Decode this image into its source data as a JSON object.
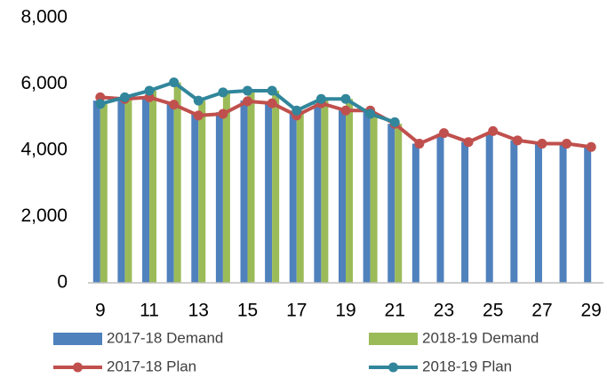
{
  "chart_data": {
    "type": "bar-line",
    "categories": [
      9,
      null,
      11,
      null,
      13,
      null,
      15,
      null,
      17,
      null,
      19,
      null,
      21,
      null,
      23,
      null,
      25,
      null,
      27,
      null,
      29
    ],
    "series": [
      {
        "name": "2017-18 Demand",
        "type": "bar",
        "color": "#4f81bd",
        "values": [
          5500,
          5550,
          5600,
          5400,
          5100,
          5150,
          5500,
          5450,
          5100,
          5400,
          5200,
          5200,
          4800,
          4200,
          4500,
          4250,
          4550,
          4300,
          4200,
          4200,
          4100
        ]
      },
      {
        "name": "2018-19 Demand",
        "type": "bar",
        "color": "#9bbb59",
        "values": [
          5400,
          5600,
          5800,
          6050,
          5500,
          5750,
          5800,
          5800,
          5200,
          5550,
          5550,
          5100,
          4800,
          null,
          null,
          null,
          null,
          null,
          null,
          null,
          null
        ]
      },
      {
        "name": "2017-18 Plan",
        "type": "line",
        "color": "#c0504d",
        "values": [
          5600,
          5550,
          5600,
          5380,
          5050,
          5100,
          5480,
          5420,
          5050,
          5420,
          5200,
          5200,
          4800,
          4200,
          4520,
          4250,
          4580,
          4300,
          4200,
          4200,
          4100
        ]
      },
      {
        "name": "2018-19 Plan",
        "type": "line",
        "color": "#31869b",
        "values": [
          5400,
          5600,
          5800,
          6050,
          5500,
          5750,
          5800,
          5800,
          5200,
          5550,
          5550,
          5100,
          4850,
          null,
          null,
          null,
          null,
          null,
          null,
          null,
          null
        ]
      }
    ],
    "ylim": [
      0,
      8000
    ],
    "yticks": [
      0,
      {
        "value": 2000,
        "label": "2,000"
      },
      {
        "value": 4000,
        "label": "4,000"
      },
      {
        "value": 6000,
        "label": "6,000"
      },
      {
        "value": 8000,
        "label": "8,000"
      }
    ],
    "grid": false,
    "legend": "bottom"
  }
}
